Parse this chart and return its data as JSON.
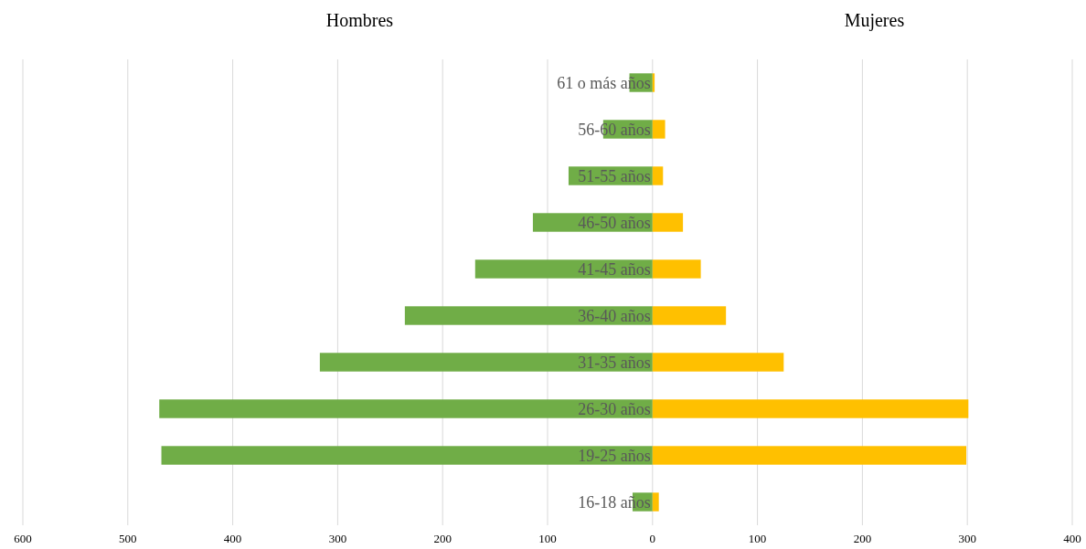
{
  "chart_data": {
    "type": "bar",
    "orientation": "horizontal",
    "stacked": true,
    "categories": [
      "61 o más años",
      "56-60 años",
      "51-55 años",
      "46-50 años",
      "41-45 años",
      "36-40 años",
      "31-35 años",
      "26-30 años",
      "19-25 años",
      "16-18 años"
    ],
    "series": [
      {
        "color": "#70ad47",
        "values": [
          -22,
          -47,
          -80,
          -114,
          -169,
          -236,
          -317,
          -470,
          -468,
          -19
        ]
      },
      {
        "color": "#ffc000",
        "values": [
          2,
          12,
          10,
          29,
          46,
          70,
          125,
          301,
          299,
          6
        ]
      }
    ],
    "annotations": [
      "Hombres",
      "Mujeres"
    ],
    "xlim": [
      -600,
      400
    ],
    "xticks": [
      {
        "value": -600,
        "label": "600"
      },
      {
        "value": -500,
        "label": "500"
      },
      {
        "value": -400,
        "label": "400"
      },
      {
        "value": -300,
        "label": "300"
      },
      {
        "value": -200,
        "label": "200"
      },
      {
        "value": -100,
        "label": "100"
      },
      0,
      100,
      200,
      300,
      400
    ],
    "grid": "x"
  }
}
